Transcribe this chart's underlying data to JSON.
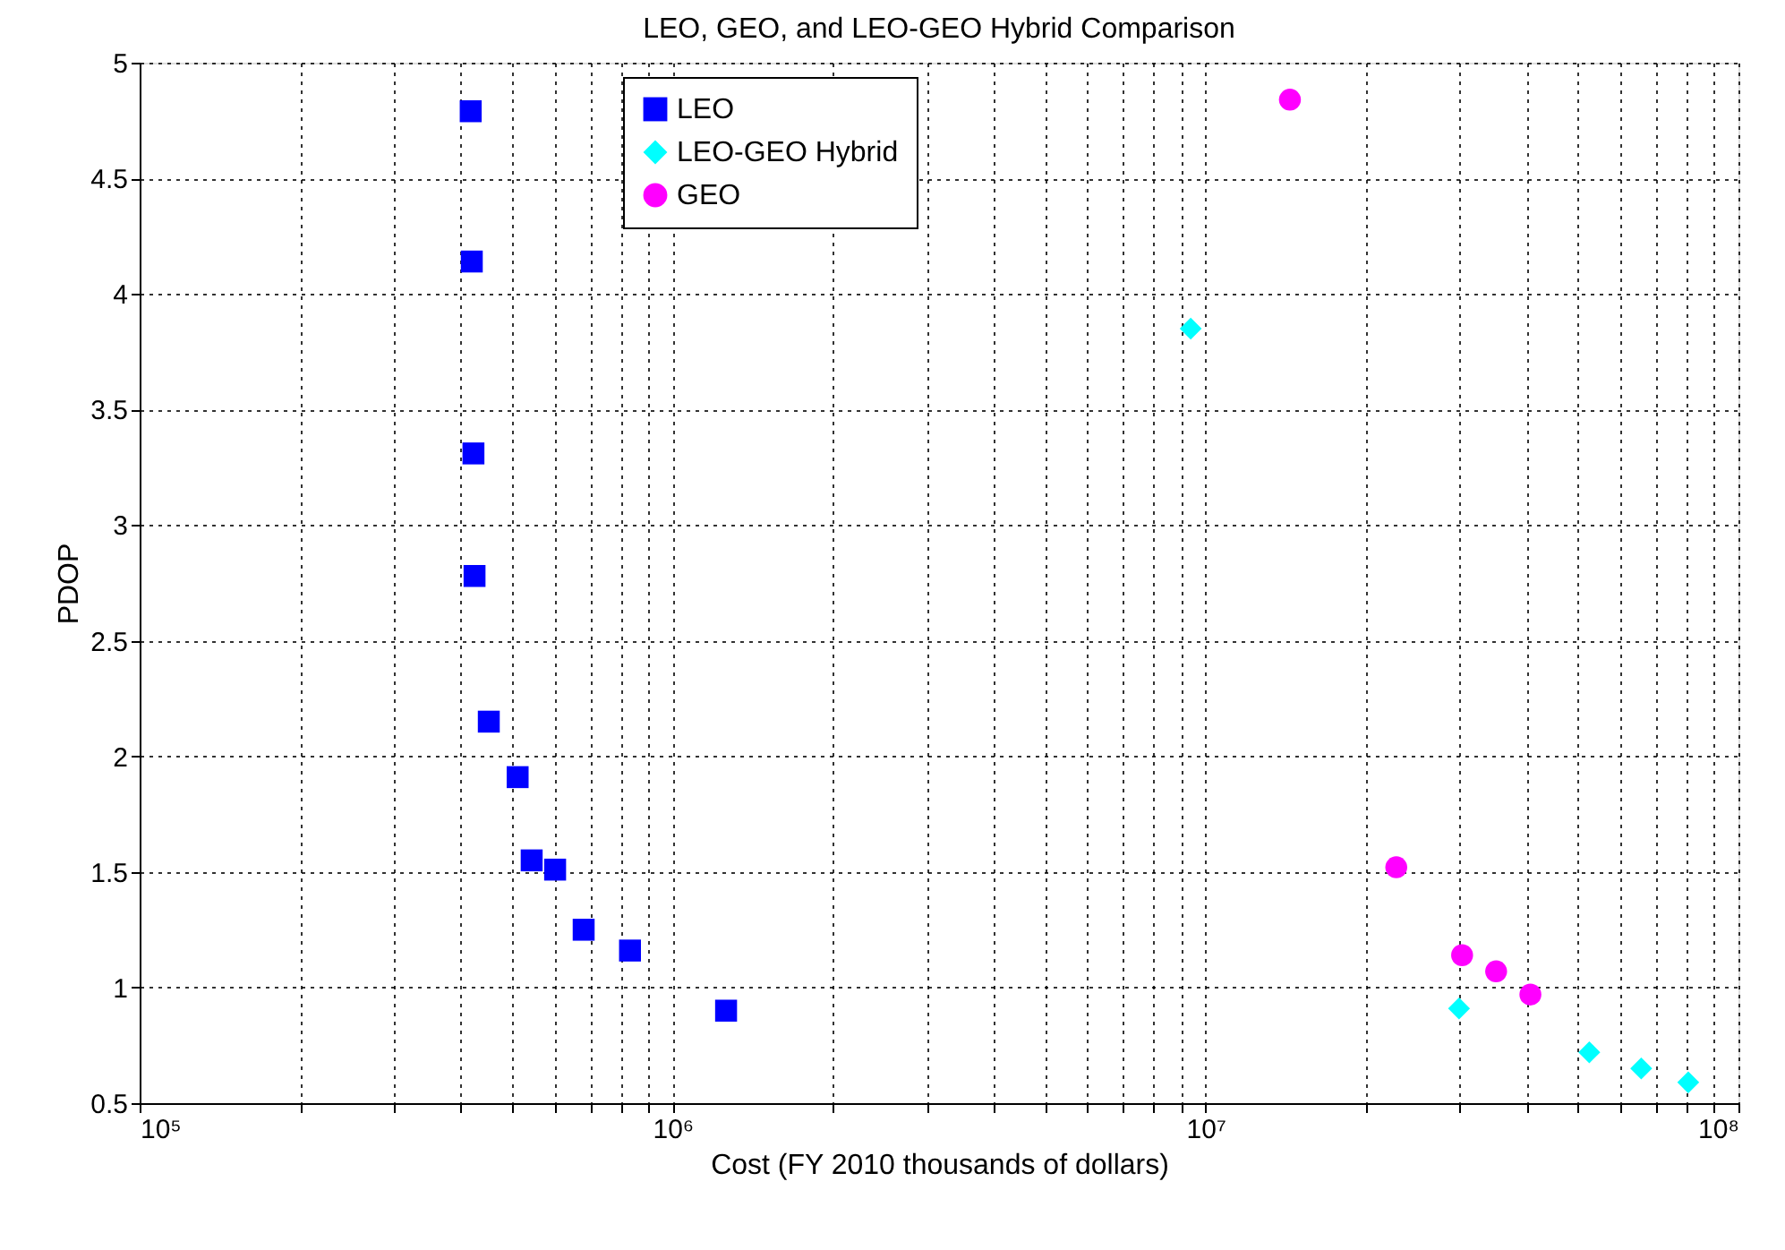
{
  "chart_data": {
    "type": "scatter",
    "title": "LEO, GEO, and LEO-GEO Hybrid Comparison",
    "xlabel": "Cost (FY 2010 thousands of dollars)",
    "ylabel": "PDOP",
    "log": "x",
    "grid": true,
    "legend": "top",
    "xlim": [
      100000,
      100000000
    ],
    "ylim": [
      0.5,
      5
    ],
    "xticks": [
      {
        "value": 100000,
        "label": "10⁵"
      },
      {
        "value": 200000,
        "label": null
      },
      {
        "value": 300000,
        "label": null
      },
      {
        "value": 400000,
        "label": null
      },
      {
        "value": 500000,
        "label": null
      },
      {
        "value": 600000,
        "label": null
      },
      {
        "value": 700000,
        "label": null
      },
      {
        "value": 800000,
        "label": null
      },
      {
        "value": 900000,
        "label": null
      },
      {
        "value": 1000000,
        "label": "10⁶"
      },
      {
        "value": 2000000,
        "label": null
      },
      {
        "value": 3000000,
        "label": null
      },
      {
        "value": 4000000,
        "label": null
      },
      {
        "value": 5000000,
        "label": null
      },
      {
        "value": 6000000,
        "label": null
      },
      {
        "value": 7000000,
        "label": null
      },
      {
        "value": 8000000,
        "label": null
      },
      {
        "value": 9000000,
        "label": null
      },
      {
        "value": 10000000,
        "label": "10⁷"
      },
      {
        "value": 20000000,
        "label": null
      },
      {
        "value": 30000000,
        "label": null
      },
      {
        "value": 40000000,
        "label": null
      },
      {
        "value": 50000000,
        "label": null
      },
      {
        "value": 60000000,
        "label": null
      },
      {
        "value": 70000000,
        "label": null
      },
      {
        "value": 80000000,
        "label": null
      },
      {
        "value": 90000000,
        "label": null
      },
      {
        "value": 100000000,
        "label": "10⁸"
      }
    ],
    "yticks": [
      0.5,
      1,
      1.5,
      2,
      2.5,
      3,
      3.5,
      4,
      4.5,
      5
    ],
    "series": [
      {
        "name": "LEO",
        "color": "#0000ff",
        "marker": "square",
        "x": [
          418000,
          420000,
          423000,
          425000,
          452000,
          512000,
          544000,
          602000,
          681000,
          832000,
          1260000
        ],
        "values": [
          4.79,
          4.14,
          3.31,
          2.78,
          2.15,
          1.91,
          1.55,
          1.51,
          1.25,
          1.16,
          0.9
        ]
      },
      {
        "name": "LEO-GEO Hybrid",
        "color": "#00ffff",
        "marker": "diamond",
        "x": [
          9380000,
          29900000,
          52500000,
          65700000,
          80500000
        ],
        "values": [
          3.85,
          0.91,
          0.72,
          0.65,
          0.59
        ]
      },
      {
        "name": "GEO",
        "color": "#ff00ff",
        "marker": "circle",
        "x": [
          14400000,
          22800000,
          30300000,
          35100000,
          40700000
        ],
        "values": [
          4.84,
          1.52,
          1.14,
          1.07,
          0.97
        ]
      }
    ]
  }
}
